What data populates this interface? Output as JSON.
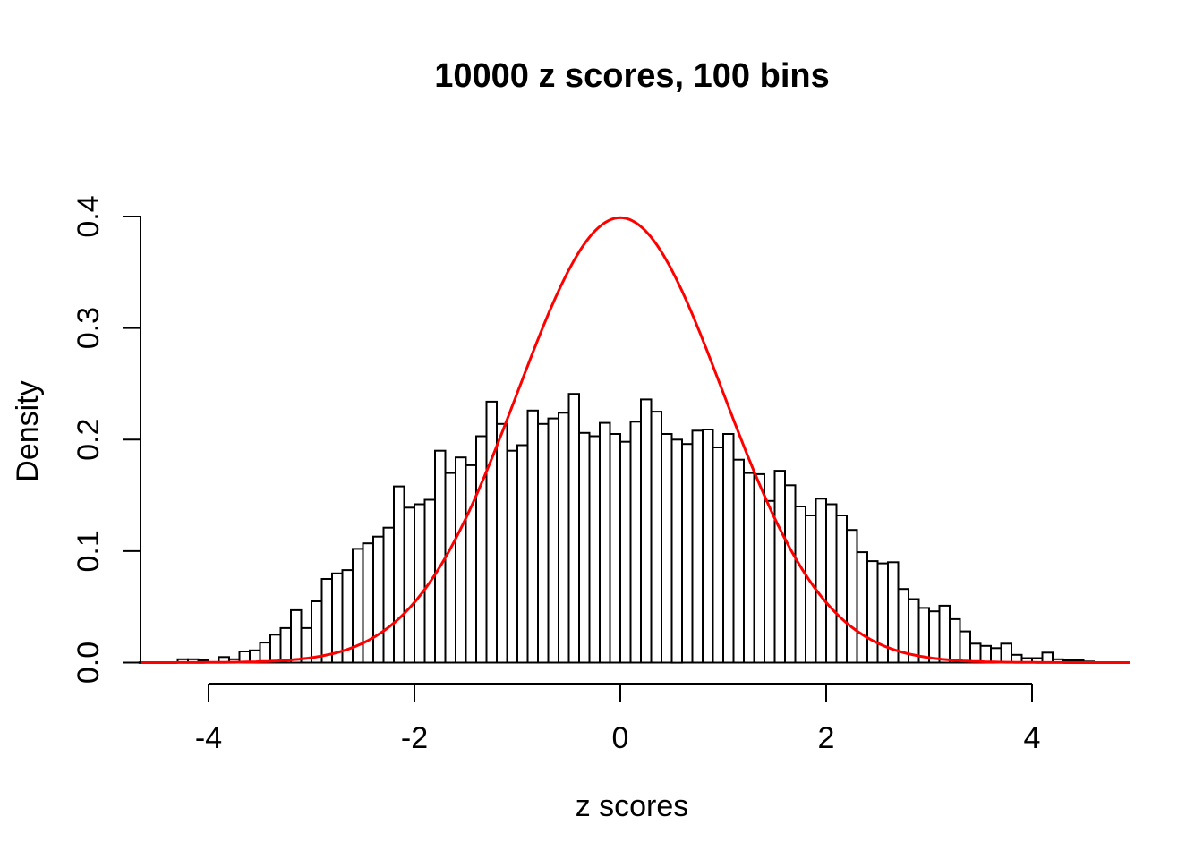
{
  "figure": {
    "background_color": "#FFFFFF"
  },
  "chart_data": {
    "type": "histogram",
    "title": "10000 z scores, 100 bins",
    "xlabel": "z scores",
    "ylabel": "Density",
    "x_tick_labels": [
      "-4",
      "-2",
      "0",
      "2",
      "4"
    ],
    "x_tick_values": [
      -4,
      -2,
      0,
      2,
      4
    ],
    "y_tick_labels": [
      "0.0",
      "0.1",
      "0.2",
      "0.3",
      "0.4"
    ],
    "y_tick_values": [
      0.0,
      0.1,
      0.2,
      0.3,
      0.4
    ],
    "xlim": [
      -4.76,
      4.96
    ],
    "ylim": [
      0,
      0.4
    ],
    "grid": false,
    "legend": "none",
    "n_samples": 10000,
    "n_bins_label": 100,
    "bin_width": 0.1,
    "bin_start": -4.4,
    "bin_densities": [
      0.0,
      0.003,
      0.003,
      0.002,
      0.0,
      0.005,
      0.003,
      0.01,
      0.011,
      0.018,
      0.025,
      0.031,
      0.047,
      0.031,
      0.055,
      0.075,
      0.08,
      0.083,
      0.102,
      0.107,
      0.113,
      0.121,
      0.158,
      0.139,
      0.142,
      0.146,
      0.19,
      0.17,
      0.184,
      0.177,
      0.203,
      0.234,
      0.214,
      0.19,
      0.195,
      0.226,
      0.214,
      0.219,
      0.224,
      0.241,
      0.206,
      0.203,
      0.215,
      0.205,
      0.198,
      0.216,
      0.236,
      0.225,
      0.205,
      0.2,
      0.196,
      0.208,
      0.209,
      0.193,
      0.205,
      0.182,
      0.17,
      0.169,
      0.145,
      0.172,
      0.159,
      0.14,
      0.132,
      0.147,
      0.142,
      0.132,
      0.119,
      0.099,
      0.091,
      0.089,
      0.09,
      0.066,
      0.057,
      0.049,
      0.046,
      0.051,
      0.039,
      0.028,
      0.017,
      0.015,
      0.013,
      0.017,
      0.007,
      0.004,
      0.004,
      0.009,
      0.003,
      0.002,
      0.002,
      0.001
    ],
    "bar_fill": "#FFFFFF",
    "bar_stroke": "#000000",
    "axis_color": "#000000",
    "text_color": "#000000",
    "curve": {
      "name": "standard-normal-density",
      "distribution": "normal",
      "mean": 0,
      "sd": 1,
      "peak_density": 0.3989,
      "color": "#FF0000",
      "x_range": [
        -4.68,
        4.95
      ]
    }
  }
}
